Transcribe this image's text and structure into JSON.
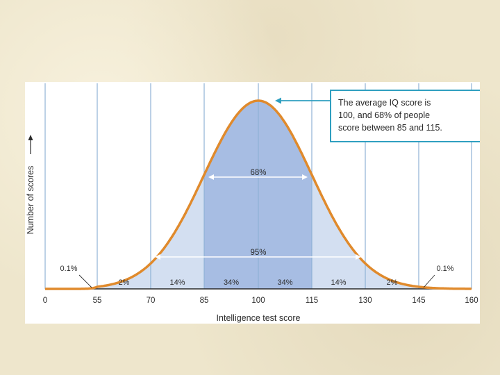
{
  "chart_data": {
    "type": "area",
    "title": "",
    "xlabel": "Intelligence test score",
    "ylabel": "Number of scores",
    "xlim": [
      0,
      160
    ],
    "x_ticks": [
      0,
      55,
      70,
      85,
      100,
      115,
      130,
      145,
      160
    ],
    "x_tick_labels": [
      "0",
      "55",
      "70",
      "85",
      "100",
      "115",
      "130",
      "145",
      "160"
    ],
    "distribution": {
      "kind": "normal",
      "mean": 100,
      "sd": 15
    },
    "segments": [
      {
        "from": 55,
        "to": 70,
        "label": "2%"
      },
      {
        "from": 70,
        "to": 85,
        "label": "14%"
      },
      {
        "from": 85,
        "to": 100,
        "label": "34%"
      },
      {
        "from": 100,
        "to": 115,
        "label": "34%"
      },
      {
        "from": 115,
        "to": 130,
        "label": "14%"
      },
      {
        "from": 130,
        "to": 145,
        "label": "2%"
      }
    ],
    "tail_labels": [
      {
        "side": "left",
        "label": "0.1%"
      },
      {
        "side": "right",
        "label": "0.1%"
      }
    ],
    "ranges": [
      {
        "from": 85,
        "to": 115,
        "label": "68%"
      },
      {
        "from": 70,
        "to": 130,
        "label": "95%"
      }
    ],
    "annotation": {
      "lines": [
        "The average IQ score is",
        "100, and 68% of people",
        "score between 85 and 115."
      ],
      "points_to": 100
    },
    "grid": "vertical",
    "colors": {
      "curve": "#e08a2c",
      "fill_inner": "#a7bde3",
      "fill_outer": "#d3dff1",
      "gridline": "#8fb2d6",
      "annotation_border": "#2f9fc0",
      "axis": "#2a2a2a",
      "panel": "#ffffff"
    }
  }
}
